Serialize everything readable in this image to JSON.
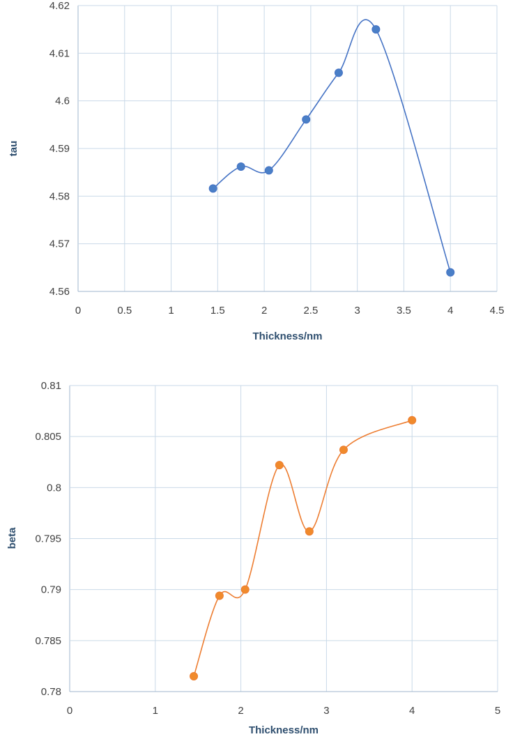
{
  "chart_data": [
    {
      "type": "scatter",
      "title": "",
      "xlabel": "Thickness/nm",
      "ylabel": "tau",
      "xlim": [
        0,
        4.5
      ],
      "ylim": [
        4.56,
        4.62
      ],
      "xticks": [
        "0",
        "0.5",
        "1",
        "1.5",
        "2",
        "2.5",
        "3",
        "3.5",
        "4",
        "4.5"
      ],
      "yticks": [
        "4.56",
        "4.57",
        "4.58",
        "4.59",
        "4.6",
        "4.61",
        "4.62"
      ],
      "grid": true,
      "legend": "none",
      "series": [
        {
          "color": "#4472c4",
          "marker_color": "#4a7fc7",
          "smooth": true,
          "x": [
            1.45,
            1.75,
            2.05,
            2.45,
            2.8,
            3.2,
            4.0
          ],
          "y": [
            4.5816,
            4.5862,
            4.5854,
            4.5961,
            4.6059,
            4.615,
            4.564
          ]
        }
      ]
    },
    {
      "type": "scatter",
      "title": "",
      "xlabel": "Thickness/nm",
      "ylabel": "beta",
      "xlim": [
        0,
        5
      ],
      "ylim": [
        0.78,
        0.81
      ],
      "xticks": [
        "0",
        "1",
        "2",
        "3",
        "4",
        "5"
      ],
      "yticks": [
        "0.78",
        "0.785",
        "0.79",
        "0.795",
        "0.8",
        "0.805",
        "0.81"
      ],
      "grid": true,
      "legend": "none",
      "series": [
        {
          "color": "#ed7d31",
          "marker_color": "#f08a2c",
          "smooth": true,
          "x": [
            1.45,
            1.75,
            2.05,
            2.45,
            2.8,
            3.2,
            4.0
          ],
          "y": [
            0.7815,
            0.7894,
            0.79,
            0.8022,
            0.7957,
            0.8037,
            0.8066
          ]
        }
      ]
    }
  ]
}
